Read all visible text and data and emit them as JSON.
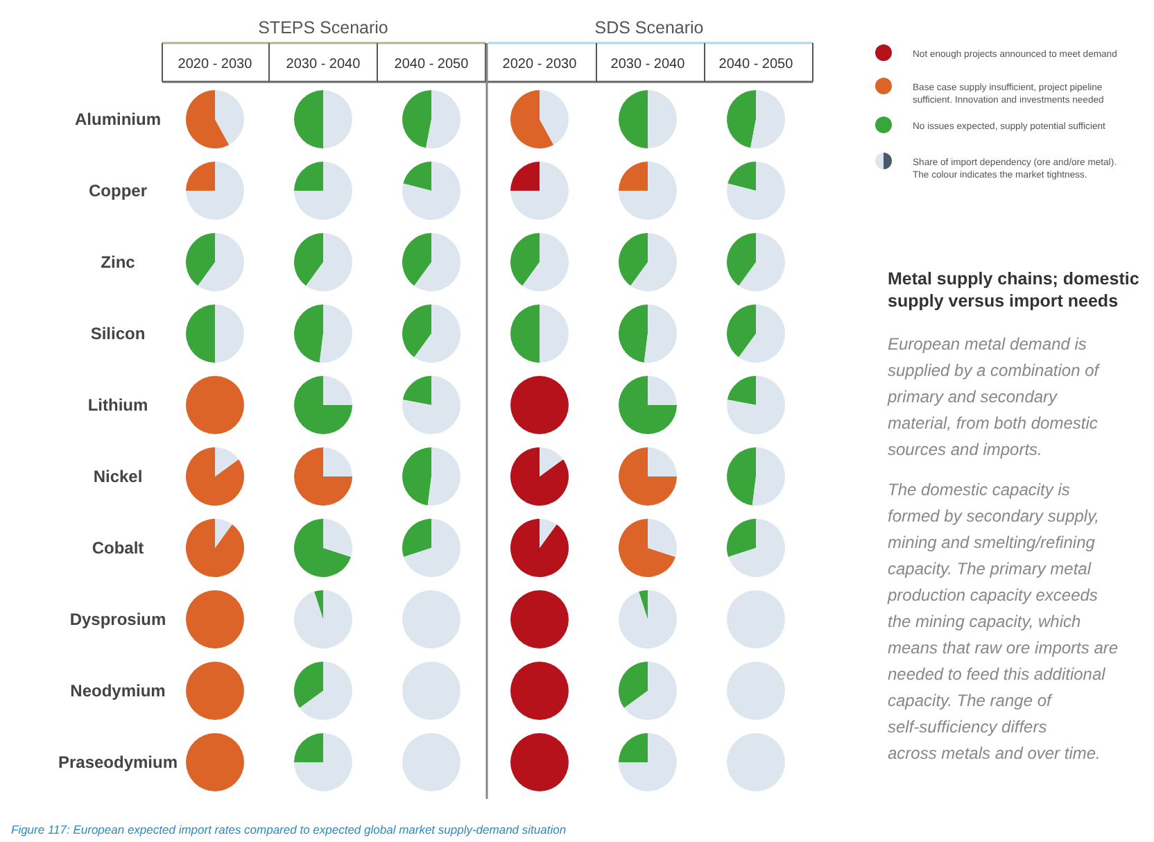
{
  "chart_data": [
    {
      "type": "other",
      "title": "Metal supply chains; domestic supply versus import needs",
      "annotations": [
        "STEPS Scenario",
        "SDS Scenario",
        "2020 - 2030",
        "2030 - 2040",
        "2040 - 2050",
        "2020 - 2030",
        "2030 - 2040",
        "2040 - 2050",
        "Aluminium",
        "Copper",
        "Zinc",
        "Silicon",
        "Lithium",
        "Nickel",
        "Cobalt",
        "Dysprosium",
        "Neodymium",
        "Praseodymium",
        "Not enough projects announced to meet demand",
        "Base case supply insufficient, project pipeline sufficient. Innovation and investments needed",
        "No issues expected, supply potential sufficient",
        "Share of import dependency (ore and/ore metal). The colour indicates the market tightness.",
        "European metal demand is supplied by a combination of primary and secondary material, from both domestic sources and imports.",
        "The domestic capacity is formed by secondary supply, mining and smelting/refining capacity. The primary metal production capacity exceeds the mining capacity, which means that raw ore imports are needed to feed this additional capacity. The range of self-sufficiency differs across metals and over time.",
        "Figure 117: European expected import rates compared to expected global market supply-demand situation"
      ]
    },
    {
      "type": "pie",
      "categories": [
        null,
        null
      ],
      "series": [
        {
          "values": [
            58,
            42
          ],
          "colors": [
            "#dc6428",
            "#dde6ef"
          ]
        },
        {
          "values": [
            25,
            75
          ],
          "colors": [
            "#dc6428",
            "#dde6ef"
          ]
        },
        {
          "values": [
            40,
            60
          ],
          "colors": [
            "#3aa53a",
            "#dde6ef"
          ]
        },
        {
          "values": [
            50,
            50
          ],
          "colors": [
            "#3aa53a",
            "#dde6ef"
          ]
        },
        {
          "values": [
            100,
            0
          ],
          "colors": [
            "#dc6428",
            "#dde6ef"
          ]
        },
        {
          "values": [
            85,
            15
          ],
          "colors": [
            "#dc6428",
            "#dde6ef"
          ]
        },
        {
          "values": [
            90,
            10
          ],
          "colors": [
            "#dc6428",
            "#dde6ef"
          ]
        },
        {
          "values": [
            100,
            0
          ],
          "colors": [
            "#dc6428",
            "#dde6ef"
          ]
        },
        {
          "values": [
            100,
            0
          ],
          "colors": [
            "#dc6428",
            "#dde6ef"
          ]
        },
        {
          "values": [
            100,
            0
          ],
          "colors": [
            "#dc6428",
            "#dde6ef"
          ]
        }
      ]
    },
    {
      "type": "pie",
      "categories": [
        null,
        null
      ],
      "series": [
        {
          "values": [
            50,
            50
          ],
          "colors": [
            "#3aa53a",
            "#dde6ef"
          ]
        },
        {
          "values": [
            25,
            75
          ],
          "colors": [
            "#3aa53a",
            "#dde6ef"
          ]
        },
        {
          "values": [
            40,
            60
          ],
          "colors": [
            "#3aa53a",
            "#dde6ef"
          ]
        },
        {
          "values": [
            48,
            52
          ],
          "colors": [
            "#3aa53a",
            "#dde6ef"
          ]
        },
        {
          "values": [
            75,
            25
          ],
          "colors": [
            "#3aa53a",
            "#dde6ef"
          ]
        },
        {
          "values": [
            75,
            25
          ],
          "colors": [
            "#dc6428",
            "#dde6ef"
          ]
        },
        {
          "values": [
            70,
            30
          ],
          "colors": [
            "#3aa53a",
            "#dde6ef"
          ]
        },
        {
          "values": [
            5,
            95
          ],
          "colors": [
            "#3aa53a",
            "#dde6ef"
          ]
        },
        {
          "values": [
            35,
            65
          ],
          "colors": [
            "#3aa53a",
            "#dde6ef"
          ]
        },
        {
          "values": [
            25,
            75
          ],
          "colors": [
            "#3aa53a",
            "#dde6ef"
          ]
        }
      ]
    },
    {
      "type": "pie",
      "categories": [
        null,
        null
      ],
      "series": [
        {
          "values": [
            47,
            53
          ],
          "colors": [
            "#3aa53a",
            "#dde6ef"
          ]
        },
        {
          "values": [
            21,
            79
          ],
          "colors": [
            "#3aa53a",
            "#dde6ef"
          ]
        },
        {
          "values": [
            40,
            60
          ],
          "colors": [
            "#3aa53a",
            "#dde6ef"
          ]
        },
        {
          "values": [
            40,
            60
          ],
          "colors": [
            "#3aa53a",
            "#dde6ef"
          ]
        },
        {
          "values": [
            22,
            78
          ],
          "colors": [
            "#3aa53a",
            "#dde6ef"
          ]
        },
        {
          "values": [
            48,
            52
          ],
          "colors": [
            "#3aa53a",
            "#dde6ef"
          ]
        },
        {
          "values": [
            30,
            70
          ],
          "colors": [
            "#3aa53a",
            "#dde6ef"
          ]
        },
        {
          "values": [
            0,
            100
          ],
          "colors": [
            "#3aa53a",
            "#dde6ef"
          ]
        },
        {
          "values": [
            0,
            100
          ],
          "colors": [
            "#3aa53a",
            "#dde6ef"
          ]
        },
        {
          "values": [
            0,
            100
          ],
          "colors": [
            "#3aa53a",
            "#dde6ef"
          ]
        }
      ]
    },
    {
      "type": "pie",
      "categories": [
        null,
        null
      ],
      "series": [
        {
          "values": [
            58,
            42
          ],
          "colors": [
            "#dc6428",
            "#dde6ef"
          ]
        },
        {
          "values": [
            25,
            75
          ],
          "colors": [
            "#b5121b",
            "#dde6ef"
          ]
        },
        {
          "values": [
            40,
            60
          ],
          "colors": [
            "#3aa53a",
            "#dde6ef"
          ]
        },
        {
          "values": [
            50,
            50
          ],
          "colors": [
            "#3aa53a",
            "#dde6ef"
          ]
        },
        {
          "values": [
            100,
            0
          ],
          "colors": [
            "#b5121b",
            "#dde6ef"
          ]
        },
        {
          "values": [
            85,
            15
          ],
          "colors": [
            "#b5121b",
            "#dde6ef"
          ]
        },
        {
          "values": [
            90,
            10
          ],
          "colors": [
            "#b5121b",
            "#dde6ef"
          ]
        },
        {
          "values": [
            100,
            0
          ],
          "colors": [
            "#b5121b",
            "#dde6ef"
          ]
        },
        {
          "values": [
            100,
            0
          ],
          "colors": [
            "#b5121b",
            "#dde6ef"
          ]
        },
        {
          "values": [
            100,
            0
          ],
          "colors": [
            "#b5121b",
            "#dde6ef"
          ]
        }
      ]
    },
    {
      "type": "pie",
      "categories": [
        null,
        null
      ],
      "series": [
        {
          "values": [
            50,
            50
          ],
          "colors": [
            "#3aa53a",
            "#dde6ef"
          ]
        },
        {
          "values": [
            25,
            75
          ],
          "colors": [
            "#dc6428",
            "#dde6ef"
          ]
        },
        {
          "values": [
            40,
            60
          ],
          "colors": [
            "#3aa53a",
            "#dde6ef"
          ]
        },
        {
          "values": [
            48,
            52
          ],
          "colors": [
            "#3aa53a",
            "#dde6ef"
          ]
        },
        {
          "values": [
            75,
            25
          ],
          "colors": [
            "#3aa53a",
            "#dde6ef"
          ]
        },
        {
          "values": [
            75,
            25
          ],
          "colors": [
            "#dc6428",
            "#dde6ef"
          ]
        },
        {
          "values": [
            70,
            30
          ],
          "colors": [
            "#dc6428",
            "#dde6ef"
          ]
        },
        {
          "values": [
            5,
            95
          ],
          "colors": [
            "#3aa53a",
            "#dde6ef"
          ]
        },
        {
          "values": [
            35,
            65
          ],
          "colors": [
            "#3aa53a",
            "#dde6ef"
          ]
        },
        {
          "values": [
            25,
            75
          ],
          "colors": [
            "#3aa53a",
            "#dde6ef"
          ]
        }
      ]
    },
    {
      "type": "pie",
      "categories": [
        null,
        null
      ],
      "series": [
        {
          "values": [
            47,
            53
          ],
          "colors": [
            "#3aa53a",
            "#dde6ef"
          ]
        },
        {
          "values": [
            21,
            79
          ],
          "colors": [
            "#3aa53a",
            "#dde6ef"
          ]
        },
        {
          "values": [
            40,
            60
          ],
          "colors": [
            "#3aa53a",
            "#dde6ef"
          ]
        },
        {
          "values": [
            40,
            60
          ],
          "colors": [
            "#3aa53a",
            "#dde6ef"
          ]
        },
        {
          "values": [
            22,
            78
          ],
          "colors": [
            "#3aa53a",
            "#dde6ef"
          ]
        },
        {
          "values": [
            48,
            52
          ],
          "colors": [
            "#3aa53a",
            "#dde6ef"
          ]
        },
        {
          "values": [
            30,
            70
          ],
          "colors": [
            "#3aa53a",
            "#dde6ef"
          ]
        },
        {
          "values": [
            0,
            100
          ],
          "colors": [
            "#3aa53a",
            "#dde6ef"
          ]
        },
        {
          "values": [
            0,
            100
          ],
          "colors": [
            "#3aa53a",
            "#dde6ef"
          ]
        },
        {
          "values": [
            0,
            100
          ],
          "colors": [
            "#3aa53a",
            "#dde6ef"
          ]
        }
      ]
    }
  ]
}
